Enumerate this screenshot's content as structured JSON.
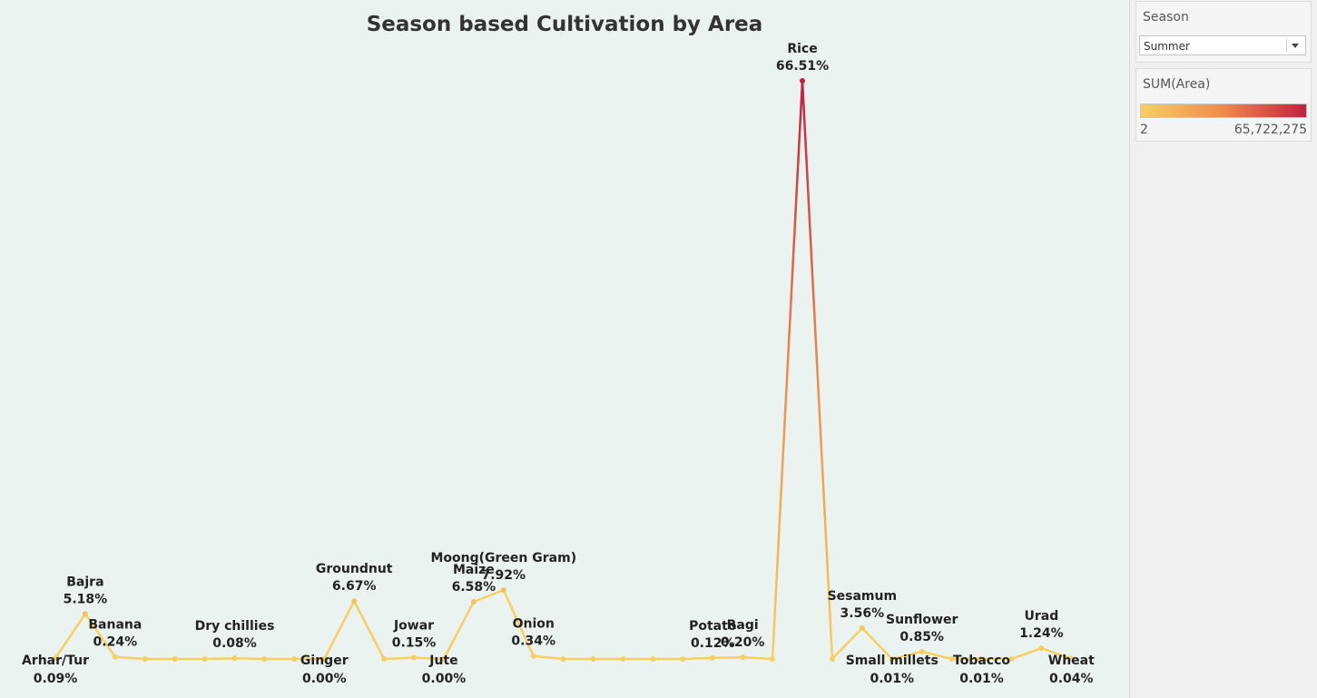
{
  "filter": {
    "title": "Season",
    "selected": "Summer"
  },
  "legend": {
    "title": "SUM(Area)",
    "min_label": "2",
    "max_label": "65,722,275",
    "color_low": "#f6cf63",
    "color_mid": "#f08a4b",
    "color_high": "#c2203f"
  },
  "chart_data": {
    "type": "line",
    "title": "Season based Cultivation  by Area",
    "xlabel": "",
    "ylabel": "",
    "ylim": [
      0,
      66.51
    ],
    "grid": false,
    "legend_placement": "right",
    "categories": [
      "Arhar/Tur",
      "Bajra",
      "Banana",
      "",
      "",
      "",
      "Dry chillies",
      "",
      "",
      "Ginger",
      "Groundnut",
      "",
      "Jowar",
      "Jute",
      "Maize",
      "Moong(Green Gram)",
      "Onion",
      "",
      "",
      "",
      "",
      "",
      "Potato",
      "Ragi",
      "",
      "Rice",
      "",
      "Sesamum",
      "Small millets",
      "Sunflower",
      "",
      "Tobacco",
      "",
      "Urad",
      "Wheat"
    ],
    "values": [
      0.09,
      5.18,
      0.24,
      0.0,
      0.0,
      0.0,
      0.08,
      0.0,
      0.0,
      0.0,
      6.67,
      0.0,
      0.15,
      0.0,
      6.58,
      7.92,
      0.34,
      0.0,
      0.0,
      0.0,
      0.0,
      0.0,
      0.12,
      0.2,
      0.0,
      66.51,
      0.0,
      3.56,
      0.01,
      0.85,
      0.0,
      0.01,
      0.0,
      1.24,
      0.04
    ],
    "point_labels": [
      {
        "i": 0,
        "name": "Arhar/Tur",
        "value": "0.09%",
        "pos": "below"
      },
      {
        "i": 1,
        "name": "Bajra",
        "value": "5.18%",
        "pos": "above"
      },
      {
        "i": 2,
        "name": "Banana",
        "value": "0.24%",
        "pos": "above"
      },
      {
        "i": 6,
        "name": "Dry chillies",
        "value": "0.08%",
        "pos": "above"
      },
      {
        "i": 9,
        "name": "Ginger",
        "value": "0.00%",
        "pos": "below"
      },
      {
        "i": 10,
        "name": "Groundnut",
        "value": "6.67%",
        "pos": "above"
      },
      {
        "i": 12,
        "name": "Jowar",
        "value": "0.15%",
        "pos": "above"
      },
      {
        "i": 13,
        "name": "Jute",
        "value": "0.00%",
        "pos": "below"
      },
      {
        "i": 14,
        "name": "Maize",
        "value": "6.58%",
        "pos": "above"
      },
      {
        "i": 15,
        "name": "Moong(Green Gram)",
        "value": "7.92%",
        "pos": "above"
      },
      {
        "i": 16,
        "name": "Onion",
        "value": "0.34%",
        "pos": "above"
      },
      {
        "i": 22,
        "name": "Potato",
        "value": "0.12%",
        "pos": "above"
      },
      {
        "i": 23,
        "name": "Ragi",
        "value": "0.20%",
        "pos": "above"
      },
      {
        "i": 25,
        "name": "Rice",
        "value": "66.51%",
        "pos": "above"
      },
      {
        "i": 27,
        "name": "Sesamum",
        "value": "3.56%",
        "pos": "above"
      },
      {
        "i": 28,
        "name": "Small millets",
        "value": "0.01%",
        "pos": "below"
      },
      {
        "i": 29,
        "name": "Sunflower",
        "value": "0.85%",
        "pos": "above"
      },
      {
        "i": 31,
        "name": "Tobacco",
        "value": "0.01%",
        "pos": "below"
      },
      {
        "i": 33,
        "name": "Urad",
        "value": "1.24%",
        "pos": "above"
      },
      {
        "i": 34,
        "name": "Wheat",
        "value": "0.04%",
        "pos": "below"
      }
    ]
  }
}
